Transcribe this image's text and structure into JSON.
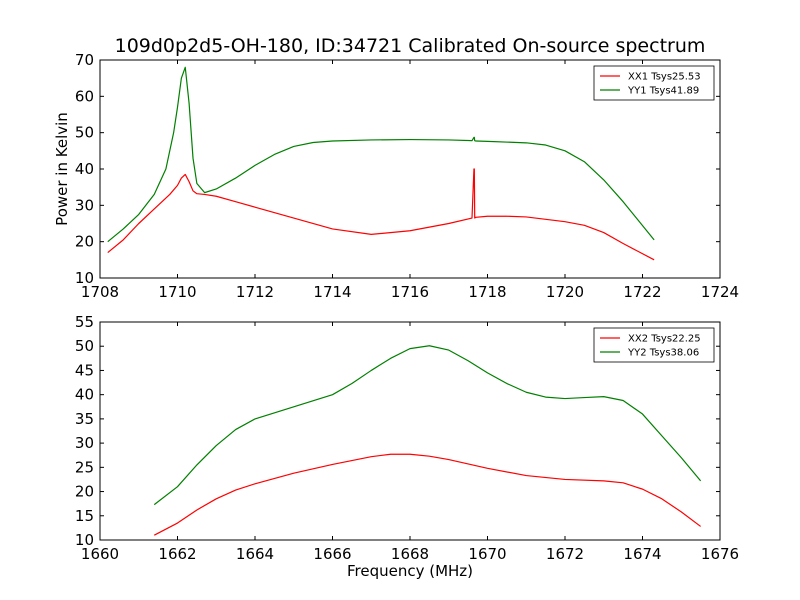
{
  "chart_data": [
    {
      "type": "line",
      "title": "109d0p2d5-OH-180, ID:34721 Calibrated On-source spectrum",
      "xlabel": "",
      "ylabel": "Power in Kelvin",
      "xlim": [
        1708,
        1724
      ],
      "ylim": [
        10,
        70
      ],
      "xticks": [
        1708,
        1710,
        1712,
        1714,
        1716,
        1718,
        1720,
        1722,
        1724
      ],
      "yticks": [
        10,
        20,
        30,
        40,
        50,
        60,
        70
      ],
      "grid": false,
      "legend": "top-right",
      "series": [
        {
          "name": "XX1 Tsys25.53",
          "color": "#ff0000",
          "x": [
            1708.2,
            1708.6,
            1709.0,
            1709.4,
            1709.8,
            1710.0,
            1710.1,
            1710.2,
            1710.3,
            1710.4,
            1710.5,
            1710.7,
            1711.0,
            1711.5,
            1712.0,
            1713.0,
            1714.0,
            1715.0,
            1716.0,
            1717.0,
            1717.6,
            1717.65,
            1717.66,
            1717.67,
            1717.7,
            1718.0,
            1718.5,
            1719.0,
            1720.0,
            1720.5,
            1721.0,
            1721.5,
            1722.3
          ],
          "y": [
            17.0,
            20.5,
            25.0,
            29.0,
            33.0,
            35.5,
            37.5,
            38.5,
            36.5,
            34.0,
            33.2,
            33.0,
            32.5,
            31.0,
            29.5,
            26.5,
            23.5,
            22.0,
            23.0,
            25.0,
            26.5,
            40.0,
            40.0,
            26.5,
            26.7,
            27.0,
            27.0,
            26.8,
            25.5,
            24.5,
            22.5,
            19.5,
            15.0
          ]
        },
        {
          "name": "YY1 Tsys41.89",
          "color": "#008000",
          "x": [
            1708.2,
            1708.6,
            1709.0,
            1709.4,
            1709.7,
            1709.9,
            1710.0,
            1710.1,
            1710.2,
            1710.3,
            1710.4,
            1710.5,
            1710.7,
            1711.0,
            1711.5,
            1712.0,
            1712.5,
            1713.0,
            1713.5,
            1714.0,
            1715.0,
            1716.0,
            1717.0,
            1717.6,
            1717.65,
            1717.66,
            1717.67,
            1717.7,
            1718.0,
            1719.0,
            1719.5,
            1720.0,
            1720.5,
            1721.0,
            1721.5,
            1722.3
          ],
          "y": [
            20.0,
            23.5,
            27.5,
            33.0,
            40.0,
            50.0,
            57.0,
            65.0,
            68.0,
            58.0,
            43.0,
            36.0,
            33.5,
            34.5,
            37.5,
            41.0,
            44.0,
            46.2,
            47.3,
            47.7,
            48.0,
            48.1,
            48.0,
            47.8,
            48.7,
            48.7,
            47.8,
            47.7,
            47.6,
            47.2,
            46.6,
            45.0,
            42.0,
            37.0,
            31.0,
            20.5
          ]
        }
      ]
    },
    {
      "type": "line",
      "title": "",
      "xlabel": "Frequency (MHz)",
      "ylabel": "",
      "xlim": [
        1660,
        1676
      ],
      "ylim": [
        10,
        55
      ],
      "xticks": [
        1660,
        1662,
        1664,
        1666,
        1668,
        1670,
        1672,
        1674,
        1676
      ],
      "yticks": [
        10,
        15,
        20,
        25,
        30,
        35,
        40,
        45,
        50,
        55
      ],
      "grid": false,
      "legend": "top-right",
      "series": [
        {
          "name": "XX2 Tsys22.25",
          "color": "#ff0000",
          "x": [
            1661.4,
            1662.0,
            1662.5,
            1663.0,
            1663.5,
            1664.0,
            1665.0,
            1666.0,
            1667.0,
            1667.5,
            1668.0,
            1668.5,
            1669.0,
            1670.0,
            1671.0,
            1672.0,
            1673.0,
            1673.5,
            1674.0,
            1674.5,
            1675.0,
            1675.5
          ],
          "y": [
            11.0,
            13.5,
            16.2,
            18.5,
            20.3,
            21.6,
            23.8,
            25.6,
            27.2,
            27.7,
            27.7,
            27.3,
            26.6,
            24.8,
            23.3,
            22.5,
            22.2,
            21.8,
            20.5,
            18.5,
            15.8,
            12.8
          ]
        },
        {
          "name": "YY2 Tsys38.06",
          "color": "#008000",
          "x": [
            1661.4,
            1662.0,
            1662.5,
            1663.0,
            1663.5,
            1664.0,
            1665.0,
            1666.0,
            1666.5,
            1667.0,
            1667.5,
            1668.0,
            1668.5,
            1669.0,
            1669.5,
            1670.0,
            1670.5,
            1671.0,
            1671.5,
            1672.0,
            1672.5,
            1673.0,
            1673.5,
            1674.0,
            1674.5,
            1675.0,
            1675.5
          ],
          "y": [
            17.3,
            21.0,
            25.5,
            29.5,
            32.8,
            35.0,
            37.5,
            40.0,
            42.3,
            45.0,
            47.5,
            49.5,
            50.1,
            49.2,
            47.0,
            44.5,
            42.3,
            40.5,
            39.5,
            39.2,
            39.4,
            39.6,
            38.8,
            36.0,
            31.5,
            27.0,
            22.2
          ]
        }
      ]
    }
  ]
}
